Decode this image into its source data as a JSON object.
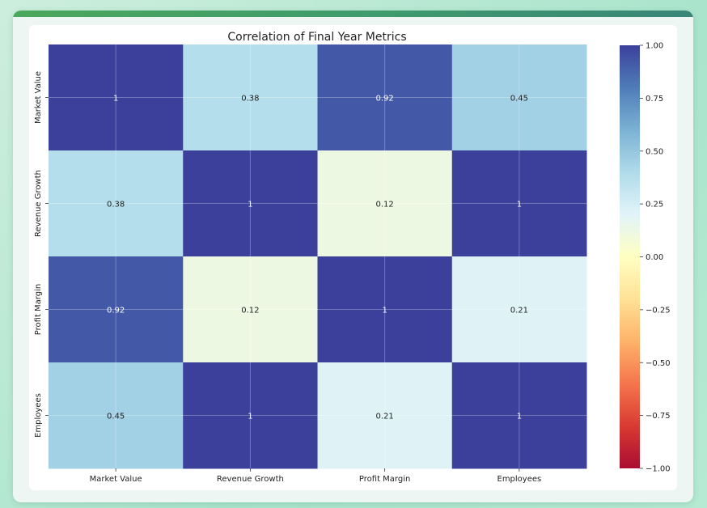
{
  "chart_data": {
    "type": "heatmap",
    "title": "Correlation of Final Year Metrics",
    "xlabel": "",
    "ylabel": "",
    "x_categories": [
      "Market Value",
      "Revenue Growth",
      "Profit Margin",
      "Employees"
    ],
    "y_categories": [
      "Market Value",
      "Revenue Growth",
      "Profit Margin",
      "Employees"
    ],
    "values": [
      [
        1,
        0.38,
        0.92,
        0.45
      ],
      [
        0.38,
        1,
        0.12,
        1
      ],
      [
        0.92,
        0.12,
        1,
        0.21
      ],
      [
        0.45,
        1,
        0.21,
        1
      ]
    ],
    "cell_labels": [
      [
        "1",
        "0.38",
        "0.92",
        "0.45"
      ],
      [
        "0.38",
        "1",
        "0.12",
        "1"
      ],
      [
        "0.92",
        "0.12",
        "1",
        "0.21"
      ],
      [
        "0.45",
        "1",
        "0.21",
        "1"
      ]
    ],
    "colormap": "RdYlBu",
    "vmin": -1.0,
    "vmax": 1.0,
    "grid": true,
    "colorbar": {
      "location": "right",
      "ticks": [
        1.0,
        0.75,
        0.5,
        0.25,
        0.0,
        -0.25,
        -0.5,
        -0.75,
        -1.0
      ],
      "tick_labels": [
        "1.00",
        "0.75",
        "0.50",
        "0.25",
        "0.00",
        "−0.25",
        "−0.50",
        "−0.75",
        "−1.00"
      ]
    }
  },
  "colors": {
    "page_background": "#bfe9d6",
    "card_background": "#eef6f3",
    "accent_bar_start": "#4aa85c",
    "accent_bar_end": "#3a8577",
    "text": "#222222"
  }
}
